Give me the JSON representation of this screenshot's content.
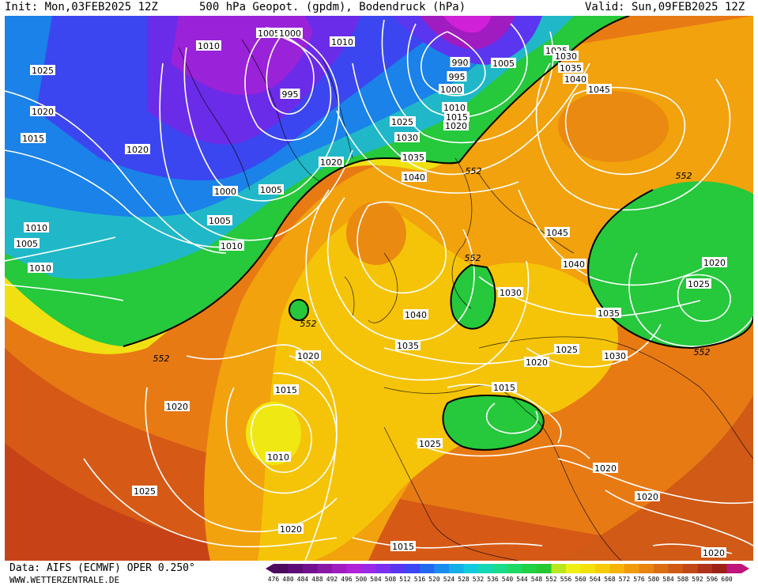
{
  "header": {
    "init": "Init: Mon,03FEB2025 12Z",
    "title": "500 hPa Geopot. (gpdm), Bodendruck (hPa)",
    "valid": "Valid: Sun,09FEB2025 12Z"
  },
  "footer": {
    "data_source": "Data: AIFS (ECMWF) OPER 0.250°",
    "website": "WWW.WETTERZENTRALE.DE"
  },
  "legend": {
    "values": [
      "476",
      "480",
      "484",
      "488",
      "492",
      "496",
      "500",
      "504",
      "508",
      "512",
      "516",
      "520",
      "524",
      "528",
      "532",
      "536",
      "540",
      "544",
      "548",
      "552",
      "556",
      "560",
      "564",
      "568",
      "572",
      "576",
      "580",
      "584",
      "588",
      "592",
      "596",
      "600"
    ],
    "colors": [
      "#4b0a5e",
      "#5e0c78",
      "#72118f",
      "#8a16a6",
      "#a01cc0",
      "#b021d8",
      "#9a2ae8",
      "#7c30ee",
      "#5a36f0",
      "#3c46f2",
      "#2468f0",
      "#1a8cee",
      "#14aee8",
      "#12cae0",
      "#14d8b4",
      "#18dc8a",
      "#1ed864",
      "#22d046",
      "#26c832",
      "#b8e81c",
      "#f0f014",
      "#f4e00a",
      "#f6cc08",
      "#f6b408",
      "#f09a0c",
      "#e88410",
      "#dc6e12",
      "#d05a14",
      "#c24818",
      "#b0341a",
      "#9c2218",
      "#c0157a"
    ]
  },
  "map": {
    "background_color": "#e87a14",
    "contour_color": "#ffffff",
    "isobar_labels": [
      "1010",
      "1005",
      "1000",
      "1010",
      "1025",
      "1020",
      "1015",
      "1020",
      "995",
      "1000",
      "1005",
      "1005",
      "1010",
      "1010",
      "1005",
      "1010",
      "1020",
      "1025",
      "990",
      "995",
      "1000",
      "1005",
      "1010",
      "1015",
      "1020",
      "1025",
      "1030",
      "1035",
      "1040",
      "1030",
      "1035",
      "1040",
      "1045",
      "1025",
      "1030",
      "1035",
      "1040",
      "1045",
      "1040",
      "1030",
      "1040",
      "1035",
      "1020",
      "1025",
      "1025",
      "1030",
      "1035",
      "1020",
      "1020",
      "1015",
      "1015",
      "1010",
      "1020",
      "1025",
      "1020",
      "1025",
      "1020",
      "1020",
      "1015",
      "1020"
    ],
    "geopotential_labels": [
      "552",
      "552",
      "552",
      "552",
      "552",
      "552"
    ]
  }
}
